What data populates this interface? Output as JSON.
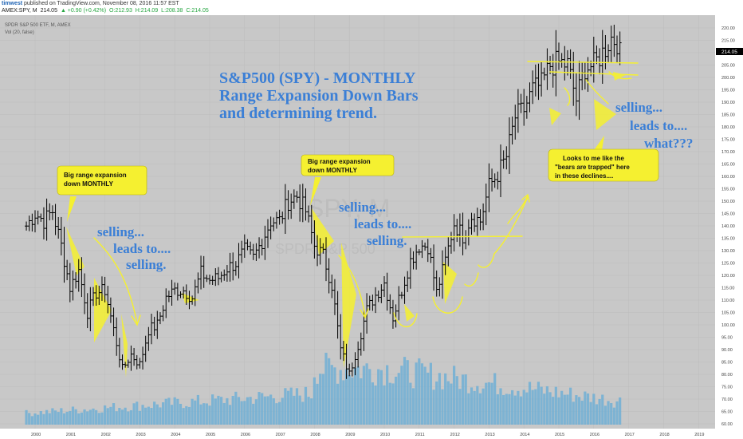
{
  "publish_line": {
    "author": "timwest",
    "text": "published on TradingView.com, November 08, 2016 11:57 EST"
  },
  "symbol_line": {
    "symbol": "AMEX:SPY, M",
    "last": "214.05",
    "change": "▲ +0.90 (+0.42%)",
    "open": "O:212.93",
    "high": "H:214.09",
    "low": "L:208.38",
    "close": "C:214.05"
  },
  "chart_header": {
    "instrument": "SPDR S&P 500 ETF, M, AMEX",
    "volume_indicator": "Vol (20, false)",
    "watermark_symbol": "SPY, M",
    "watermark_name": "SPDR S&P 500"
  },
  "colors": {
    "background": "#c8c8c8",
    "bars": "#000000",
    "volume": "#6aaed6",
    "highlight": "#f5f030",
    "annotation_blue": "#3b7fd6",
    "price_tag": "#000000"
  },
  "annotations": {
    "title_lines": [
      "S&P500 (SPY) - MONTHLY",
      "Range Expansion Down Bars",
      "and determining trend."
    ],
    "box1_lines": [
      "Big range expansion",
      "down MONTHLY"
    ],
    "box2_lines": [
      "Big range expansion",
      "down MONTHLY"
    ],
    "box3_lines": [
      "Looks to me like the",
      "\"bears are trapped\" here",
      "in these declines...."
    ],
    "left_lines": [
      "selling...",
      "leads to....",
      "selling."
    ],
    "mid_lines": [
      "selling...",
      "leads to....",
      "selling."
    ],
    "right_lines": [
      "selling...",
      "leads to....",
      "what???"
    ]
  },
  "chart_data": {
    "type": "ohlc",
    "price_axis": {
      "min": 60,
      "max": 220,
      "step": 5,
      "labels": [
        "220.00",
        "215.00",
        "210.00",
        "205.00",
        "200.00",
        "195.00",
        "190.00",
        "185.00",
        "180.00",
        "175.00",
        "170.00",
        "165.00",
        "160.00",
        "155.00",
        "150.00",
        "145.00",
        "140.00",
        "135.00",
        "130.00",
        "125.00",
        "120.00",
        "115.00",
        "110.00",
        "105.00",
        "100.00",
        "95.00",
        "90.00",
        "85.00",
        "80.00",
        "75.00",
        "70.00",
        "65.00",
        "60.00"
      ]
    },
    "time_axis": {
      "years": [
        "2000",
        "2001",
        "2002",
        "2003",
        "2004",
        "2005",
        "2006",
        "2007",
        "2008",
        "2009",
        "2010",
        "2011",
        "2012",
        "2013",
        "2014",
        "2015",
        "2016",
        "2017",
        "2018",
        "2019"
      ]
    },
    "last_price": "214.05",
    "quarterly_closes": [
      [
        "1999-Q4",
        140
      ],
      [
        "2000-Q1",
        145
      ],
      [
        "2000-Q2",
        142
      ],
      [
        "2000-Q3",
        146
      ],
      [
        "2000-Q4",
        132
      ],
      [
        "2001-Q1",
        115
      ],
      [
        "2001-Q2",
        122
      ],
      [
        "2001-Q3",
        105
      ],
      [
        "2001-Q4",
        113
      ],
      [
        "2002-Q1",
        114
      ],
      [
        "2002-Q2",
        98
      ],
      [
        "2002-Q3",
        82
      ],
      [
        "2002-Q4",
        88
      ],
      [
        "2003-Q1",
        84
      ],
      [
        "2003-Q2",
        98
      ],
      [
        "2003-Q3",
        100
      ],
      [
        "2003-Q4",
        111
      ],
      [
        "2004-Q1",
        114
      ],
      [
        "2004-Q2",
        114
      ],
      [
        "2004-Q3",
        111
      ],
      [
        "2004-Q4",
        121
      ],
      [
        "2005-Q1",
        118
      ],
      [
        "2005-Q2",
        119
      ],
      [
        "2005-Q3",
        123
      ],
      [
        "2005-Q4",
        125
      ],
      [
        "2006-Q1",
        130
      ],
      [
        "2006-Q2",
        127
      ],
      [
        "2006-Q3",
        134
      ],
      [
        "2006-Q4",
        142
      ],
      [
        "2007-Q1",
        142
      ],
      [
        "2007-Q2",
        150
      ],
      [
        "2007-Q3",
        152
      ],
      [
        "2007-Q4",
        146
      ],
      [
        "2008-Q1",
        132
      ],
      [
        "2008-Q2",
        128
      ],
      [
        "2008-Q3",
        116
      ],
      [
        "2008-Q4",
        90
      ],
      [
        "2009-Q1",
        80
      ],
      [
        "2009-Q2",
        92
      ],
      [
        "2009-Q3",
        106
      ],
      [
        "2009-Q4",
        112
      ],
      [
        "2010-Q1",
        117
      ],
      [
        "2010-Q2",
        103
      ],
      [
        "2010-Q3",
        114
      ],
      [
        "2010-Q4",
        126
      ],
      [
        "2011-Q1",
        132
      ],
      [
        "2011-Q2",
        132
      ],
      [
        "2011-Q3",
        113
      ],
      [
        "2011-Q4",
        126
      ],
      [
        "2012-Q1",
        141
      ],
      [
        "2012-Q2",
        136
      ],
      [
        "2012-Q3",
        144
      ],
      [
        "2012-Q4",
        142
      ],
      [
        "2013-Q1",
        156
      ],
      [
        "2013-Q2",
        161
      ],
      [
        "2013-Q3",
        168
      ],
      [
        "2013-Q4",
        184
      ],
      [
        "2014-Q1",
        187
      ],
      [
        "2014-Q2",
        195
      ],
      [
        "2014-Q3",
        197
      ],
      [
        "2014-Q4",
        205
      ],
      [
        "2015-Q1",
        206
      ],
      [
        "2015-Q2",
        205
      ],
      [
        "2015-Q3",
        191
      ],
      [
        "2015-Q4",
        204
      ],
      [
        "2016-Q1",
        205
      ],
      [
        "2016-Q2",
        210
      ],
      [
        "2016-Q3",
        216
      ],
      [
        "2016-Q4",
        214
      ]
    ]
  }
}
